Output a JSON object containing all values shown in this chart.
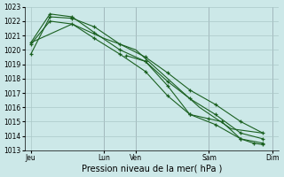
{
  "title": "Pression niveau de la mer( hPa )",
  "bg_color": "#cce8e8",
  "grid_color": "#aac8c8",
  "line_color": "#1a6020",
  "ylim": [
    1013,
    1023
  ],
  "yticks": [
    1013,
    1014,
    1015,
    1016,
    1017,
    1018,
    1019,
    1020,
    1021,
    1022,
    1023
  ],
  "xlim": [
    0,
    8.0
  ],
  "series": [
    {
      "x": [
        0.2,
        0.8,
        1.5,
        2.2,
        3.0,
        3.8,
        4.5,
        5.2,
        6.0,
        6.8,
        7.5
      ],
      "y": [
        1019.7,
        1022.3,
        1022.2,
        1021.6,
        1020.4,
        1019.5,
        1018.4,
        1017.2,
        1016.2,
        1015.0,
        1014.2
      ],
      "marker": true
    },
    {
      "x": [
        0.2,
        0.8,
        1.5,
        2.2,
        3.0,
        3.8,
        4.5,
        5.2,
        6.0,
        6.8,
        7.5
      ],
      "y": [
        1020.5,
        1022.5,
        1022.3,
        1021.2,
        1020.0,
        1019.2,
        1017.8,
        1016.6,
        1015.5,
        1014.2,
        1013.8
      ],
      "marker": true
    },
    {
      "x": [
        0.2,
        0.8,
        1.5,
        2.2,
        3.0,
        3.8,
        4.5,
        5.2,
        6.0,
        6.8,
        7.5
      ],
      "y": [
        1020.4,
        1022.0,
        1021.8,
        1020.8,
        1019.7,
        1018.5,
        1016.8,
        1015.5,
        1014.8,
        1013.8,
        1013.5
      ],
      "marker": true
    },
    {
      "x": [
        0.2,
        1.5,
        2.5,
        3.5,
        4.5,
        5.5,
        6.5,
        7.5
      ],
      "y": [
        1020.5,
        1021.8,
        1020.8,
        1020.0,
        1018.0,
        1016.0,
        1014.5,
        1014.2
      ],
      "marker": false
    },
    {
      "x": [
        3.2,
        3.8,
        4.5,
        5.2,
        5.8,
        6.2,
        6.8,
        7.2,
        7.5
      ],
      "y": [
        1019.6,
        1019.2,
        1017.5,
        1015.5,
        1015.2,
        1015.0,
        1013.8,
        1013.5,
        1013.4
      ],
      "marker": true
    }
  ],
  "xtick_positions": [
    0.2,
    2.5,
    3.5,
    5.8,
    7.8
  ],
  "xtick_labels": [
    "Jeu",
    "Lun",
    "Ven",
    "Sam",
    "Dim"
  ],
  "vlines": [
    2.5,
    3.5,
    5.8,
    7.8
  ]
}
